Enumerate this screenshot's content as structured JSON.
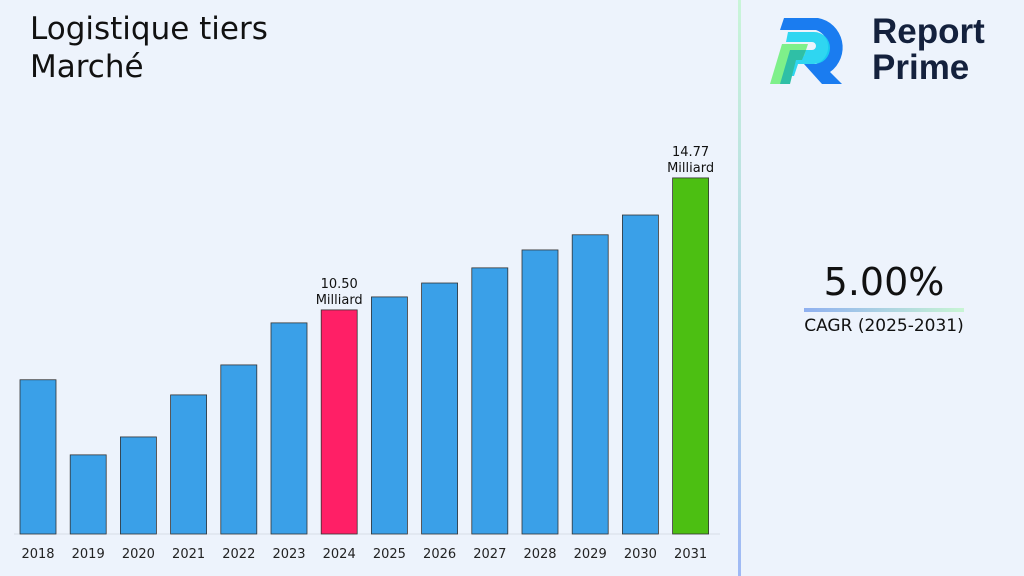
{
  "title_line1": "Logistique tiers",
  "title_line2": "Marché",
  "logo": {
    "line1": "Report",
    "line2": "Prime"
  },
  "cagr": {
    "value": "5.00%",
    "label": "CAGR (2025-2031)"
  },
  "chart_data": {
    "type": "bar",
    "categories": [
      "2018",
      "2019",
      "2020",
      "2021",
      "2022",
      "2023",
      "2024",
      "2025",
      "2026",
      "2027",
      "2028",
      "2029",
      "2030",
      "2031"
    ],
    "values": [
      8.24,
      5.81,
      6.39,
      7.75,
      8.72,
      10.08,
      10.5,
      10.92,
      11.37,
      11.86,
      12.44,
      12.93,
      13.57,
      14.77
    ],
    "colors": {
      "default": "#3aa0e8",
      "highlight_2024": "#ff1f66",
      "highlight_2031": "#4cbf12"
    },
    "data_labels": [
      {
        "category": "2024",
        "value": "10.50",
        "unit": "Milliard"
      },
      {
        "category": "2031",
        "value": "14.77",
        "unit": "Milliard"
      }
    ],
    "ylim": [
      3.25,
      16
    ],
    "grid": false,
    "title": "",
    "xlabel": "",
    "ylabel": ""
  }
}
